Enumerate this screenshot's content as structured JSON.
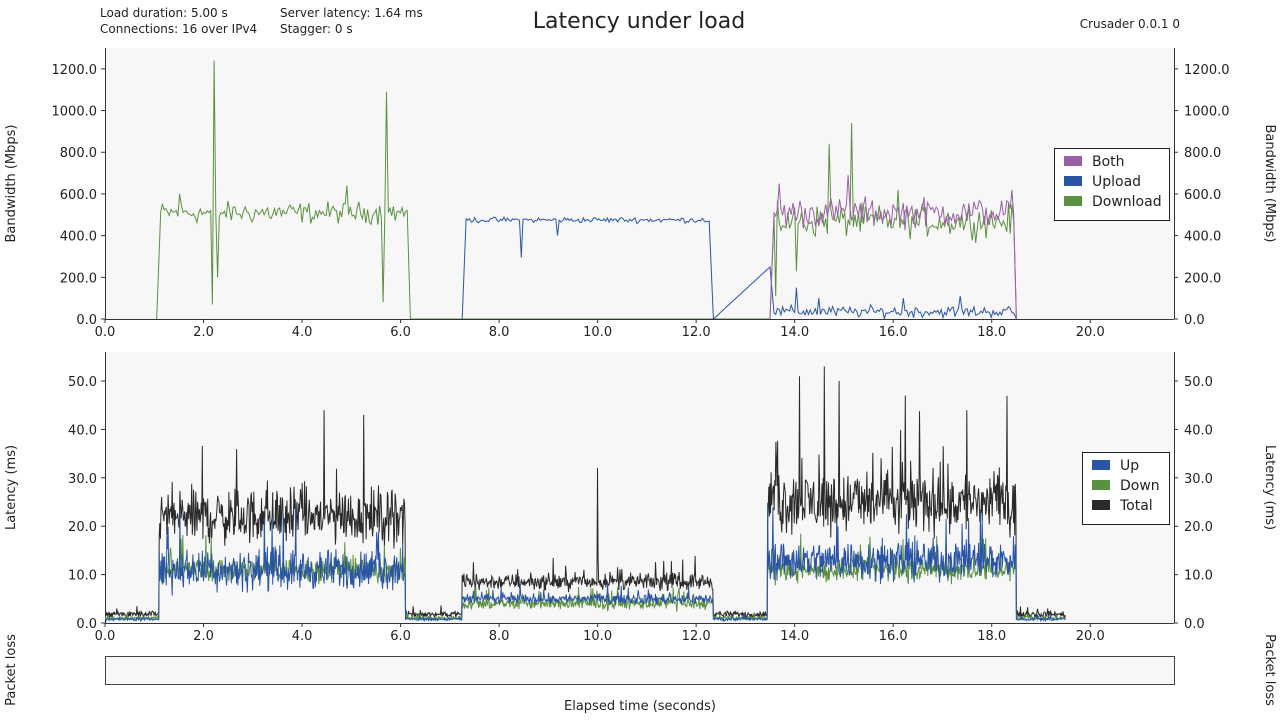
{
  "header": {
    "title": "Latency under load",
    "version": "Crusader 0.0.1 0",
    "load_duration": "Load duration: 5.00 s",
    "connections": "Connections: 16 over IPv4",
    "server_latency": "Server latency: 1.64 ms",
    "stagger": "Stagger: 0 s"
  },
  "colors": {
    "background": "#ffffff",
    "plot_background": "#f7f7f7",
    "both": "#9b5fa6",
    "upload": "#2a55a6",
    "download": "#5a9140",
    "total": "#2a2a2a"
  },
  "packet_loss_label": "Packet loss",
  "chart_data": [
    {
      "type": "line",
      "name": "bandwidth",
      "ylabel": "Bandwidth (Mbps)",
      "xlim": [
        0,
        21.7
      ],
      "ylim": [
        0,
        1300
      ],
      "x_ticks": [
        "0.0",
        "2.0",
        "4.0",
        "6.0",
        "8.0",
        "10.0",
        "12.0",
        "14.0",
        "16.0",
        "18.0",
        "20.0"
      ],
      "y_ticks": [
        "0.0",
        "200.0",
        "400.0",
        "600.0",
        "800.0",
        "1000.0",
        "1200.0"
      ],
      "legend": [
        "Both",
        "Upload",
        "Download"
      ],
      "legend_position": "right",
      "series": [
        {
          "name": "Download",
          "segments": [
            {
              "x_range": [
                1.05,
                6.2
              ],
              "mean": 510,
              "noise": 75,
              "spikes": [
                [
                  2.2,
                  1240
                ],
                [
                  2.18,
                  70
                ],
                [
                  2.3,
                  200
                ],
                [
                  5.7,
                  1090
                ],
                [
                  5.65,
                  80
                ],
                [
                  1.5,
                  600
                ],
                [
                  4.9,
                  640
                ]
              ]
            },
            {
              "x_range": [
                13.5,
                18.5
              ],
              "mean": 470,
              "noise": 110,
              "spikes": [
                [
                  15.15,
                  940
                ],
                [
                  14.7,
                  840
                ],
                [
                  14.05,
                  230
                ],
                [
                  13.6,
                  110
                ],
                [
                  16.1,
                  620
                ]
              ]
            }
          ],
          "baseline": {
            "x_range": [
              6.2,
              13.5
            ],
            "value": 0
          }
        },
        {
          "name": "Upload",
          "segments": [
            {
              "x_range": [
                7.25,
                12.35
              ],
              "mean": 475,
              "noise": 20,
              "spikes": [
                [
                  8.45,
                  295
                ],
                [
                  9.2,
                  400
                ]
              ]
            },
            {
              "x_range": [
                13.5,
                18.5
              ],
              "mean": 35,
              "noise": 40,
              "spikes": [
                [
                  13.5,
                  250
                ],
                [
                  14.05,
                  150
                ],
                [
                  14.5,
                  100
                ],
                [
                  16.2,
                  100
                ],
                [
                  17.35,
                  110
                ]
              ]
            }
          ]
        },
        {
          "name": "Both",
          "segments": [
            {
              "x_range": [
                13.5,
                18.5
              ],
              "mean": 510,
              "noise": 105,
              "spikes": [
                [
                  13.7,
                  650
                ],
                [
                  15.1,
                  690
                ],
                [
                  18.4,
                  620
                ]
              ]
            }
          ]
        }
      ]
    },
    {
      "type": "line",
      "name": "latency",
      "ylabel": "Latency (ms)",
      "xlabel": "Elapsed time (seconds)",
      "xlim": [
        0,
        21.7
      ],
      "ylim": [
        0,
        56
      ],
      "x_ticks": [
        "0.0",
        "2.0",
        "4.0",
        "6.0",
        "8.0",
        "10.0",
        "12.0",
        "14.0",
        "16.0",
        "18.0",
        "20.0"
      ],
      "y_ticks": [
        "0.0",
        "10.0",
        "20.0",
        "30.0",
        "40.0",
        "50.0"
      ],
      "legend": [
        "Up",
        "Down",
        "Total"
      ],
      "legend_position": "right",
      "series": [
        {
          "name": "Total",
          "x_range": [
            0,
            19.5
          ],
          "regimes": [
            {
              "x_range": [
                0,
                1.1
              ],
              "mean": 1.8,
              "noise": 0.8
            },
            {
              "x_range": [
                1.1,
                6.1
              ],
              "mean": 22,
              "noise": 7
            },
            {
              "x_range": [
                6.1,
                7.25
              ],
              "mean": 1.8,
              "noise": 0.8
            },
            {
              "x_range": [
                7.25,
                12.35
              ],
              "mean": 8.5,
              "noise": 2
            },
            {
              "x_range": [
                12.35,
                13.45
              ],
              "mean": 1.8,
              "noise": 0.8
            },
            {
              "x_range": [
                13.45,
                18.5
              ],
              "mean": 25,
              "noise": 8
            },
            {
              "x_range": [
                18.5,
                19.5
              ],
              "mean": 1.8,
              "noise": 0.8
            }
          ],
          "spikes": [
            [
              4.45,
              44
            ],
            [
              5.25,
              43
            ],
            [
              10.0,
              32
            ],
            [
              14.1,
              51
            ],
            [
              14.6,
              53
            ],
            [
              14.9,
              50
            ],
            [
              16.25,
              47
            ],
            [
              17.5,
              44
            ]
          ]
        },
        {
          "name": "Down",
          "x_range": [
            0,
            19.5
          ],
          "regimes": [
            {
              "x_range": [
                0,
                1.1
              ],
              "mean": 1.0,
              "noise": 0.5
            },
            {
              "x_range": [
                1.1,
                6.1
              ],
              "mean": 11,
              "noise": 3
            },
            {
              "x_range": [
                6.1,
                7.25
              ],
              "mean": 1.0,
              "noise": 0.5
            },
            {
              "x_range": [
                7.25,
                12.35
              ],
              "mean": 4,
              "noise": 1.5
            },
            {
              "x_range": [
                12.35,
                13.45
              ],
              "mean": 1.0,
              "noise": 0.5
            },
            {
              "x_range": [
                13.45,
                18.5
              ],
              "mean": 11,
              "noise": 3
            },
            {
              "x_range": [
                18.5,
                19.5
              ],
              "mean": 1.0,
              "noise": 0.5
            }
          ],
          "spikes": []
        },
        {
          "name": "Up",
          "x_range": [
            0,
            19.5
          ],
          "regimes": [
            {
              "x_range": [
                0,
                1.1
              ],
              "mean": 0.8,
              "noise": 0.4
            },
            {
              "x_range": [
                1.1,
                6.1
              ],
              "mean": 11,
              "noise": 5
            },
            {
              "x_range": [
                6.1,
                7.25
              ],
              "mean": 0.8,
              "noise": 0.4
            },
            {
              "x_range": [
                7.25,
                12.35
              ],
              "mean": 5,
              "noise": 1.3
            },
            {
              "x_range": [
                12.35,
                13.45
              ],
              "mean": 0.8,
              "noise": 0.4
            },
            {
              "x_range": [
                13.45,
                18.5
              ],
              "mean": 13,
              "noise": 5
            },
            {
              "x_range": [
                18.5,
                19.5
              ],
              "mean": 0.8,
              "noise": 0.4
            }
          ],
          "spikes": []
        }
      ]
    }
  ]
}
